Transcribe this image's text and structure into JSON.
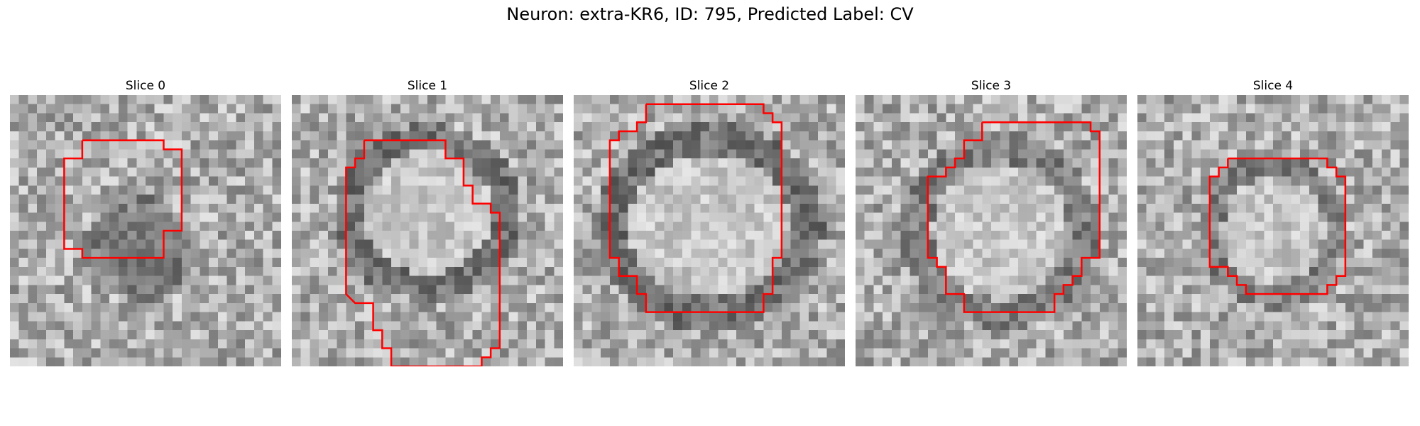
{
  "figure": {
    "title": "Neuron: extra-KR6, ID: 795, Predicted Label: CV",
    "grid_size": 30,
    "contour_color": "#ff0000",
    "colormap": "gray"
  },
  "panels": [
    {
      "title": "Slice 0",
      "dark_ring": {
        "cx": 14.5,
        "cy": 17.0,
        "rx": 4.5,
        "ry": 4.0,
        "level": 0.35,
        "filled": true
      },
      "contour": [
        [
          8,
          5
        ],
        [
          17,
          5
        ],
        [
          17,
          6
        ],
        [
          19,
          6
        ],
        [
          19,
          15
        ],
        [
          17,
          15
        ],
        [
          17,
          18
        ],
        [
          8,
          18
        ],
        [
          8,
          17
        ],
        [
          6,
          17
        ],
        [
          6,
          7
        ],
        [
          8,
          7
        ],
        [
          8,
          5
        ]
      ]
    },
    {
      "title": "Slice 1",
      "dark_ring": {
        "cx": 15.0,
        "cy": 13.0,
        "rx": 9.0,
        "ry": 8.5,
        "level": 0.3,
        "filled": false
      },
      "contour": [
        [
          8,
          5
        ],
        [
          17,
          5
        ],
        [
          17,
          7
        ],
        [
          19,
          7
        ],
        [
          19,
          10
        ],
        [
          20,
          10
        ],
        [
          20,
          12
        ],
        [
          22,
          12
        ],
        [
          22,
          13
        ],
        [
          23,
          13
        ],
        [
          23,
          28
        ],
        [
          22,
          28
        ],
        [
          22,
          29
        ],
        [
          21,
          29
        ],
        [
          21,
          30
        ],
        [
          11,
          30
        ],
        [
          11,
          28
        ],
        [
          10,
          28
        ],
        [
          10,
          26
        ],
        [
          9,
          26
        ],
        [
          9,
          23
        ],
        [
          7,
          23
        ],
        [
          7,
          23
        ],
        [
          6,
          22
        ],
        [
          6,
          8
        ],
        [
          7,
          8
        ],
        [
          7,
          7
        ],
        [
          8,
          7
        ],
        [
          8,
          5
        ]
      ]
    },
    {
      "title": "Slice 2",
      "dark_ring": {
        "cx": 15.0,
        "cy": 14.5,
        "rx": 11.0,
        "ry": 10.0,
        "level": 0.3,
        "filled": false
      },
      "contour": [
        [
          8,
          1
        ],
        [
          21,
          1
        ],
        [
          21,
          2
        ],
        [
          22,
          2
        ],
        [
          22,
          3
        ],
        [
          23,
          3
        ],
        [
          23,
          18
        ],
        [
          22,
          18
        ],
        [
          22,
          22
        ],
        [
          21,
          22
        ],
        [
          21,
          24
        ],
        [
          8,
          24
        ],
        [
          8,
          22
        ],
        [
          7,
          22
        ],
        [
          7,
          20
        ],
        [
          5,
          20
        ],
        [
          5,
          18
        ],
        [
          4,
          18
        ],
        [
          4,
          5
        ],
        [
          5,
          5
        ],
        [
          5,
          4
        ],
        [
          7,
          4
        ],
        [
          7,
          3
        ],
        [
          8,
          3
        ],
        [
          8,
          1
        ]
      ]
    },
    {
      "title": "Slice 3",
      "dark_ring": {
        "cx": 16.0,
        "cy": 15.0,
        "rx": 9.5,
        "ry": 9.5,
        "level": 0.35,
        "filled": false
      },
      "contour": [
        [
          14,
          3
        ],
        [
          26,
          3
        ],
        [
          26,
          4
        ],
        [
          27,
          4
        ],
        [
          27,
          18
        ],
        [
          25,
          18
        ],
        [
          25,
          20
        ],
        [
          24,
          20
        ],
        [
          24,
          21
        ],
        [
          23,
          21
        ],
        [
          23,
          22
        ],
        [
          22,
          22
        ],
        [
          22,
          24
        ],
        [
          12,
          24
        ],
        [
          12,
          22
        ],
        [
          10,
          22
        ],
        [
          10,
          19
        ],
        [
          9,
          19
        ],
        [
          9,
          18
        ],
        [
          8,
          18
        ],
        [
          8,
          9
        ],
        [
          10,
          9
        ],
        [
          10,
          8
        ],
        [
          11,
          8
        ],
        [
          11,
          7
        ],
        [
          12,
          7
        ],
        [
          12,
          5
        ],
        [
          14,
          5
        ],
        [
          14,
          3
        ]
      ]
    },
    {
      "title": "Slice 4",
      "dark_ring": {
        "cx": 15.0,
        "cy": 15.0,
        "rx": 7.0,
        "ry": 7.5,
        "level": 0.35,
        "filled": false
      },
      "contour": [
        [
          10,
          7
        ],
        [
          21,
          7
        ],
        [
          21,
          8
        ],
        [
          22,
          8
        ],
        [
          22,
          9
        ],
        [
          23,
          9
        ],
        [
          23,
          20
        ],
        [
          22,
          20
        ],
        [
          22,
          21
        ],
        [
          21,
          21
        ],
        [
          21,
          22
        ],
        [
          12,
          22
        ],
        [
          12,
          21
        ],
        [
          11,
          21
        ],
        [
          11,
          20
        ],
        [
          10,
          20
        ],
        [
          10,
          19
        ],
        [
          8,
          19
        ],
        [
          8,
          9
        ],
        [
          9,
          9
        ],
        [
          9,
          8
        ],
        [
          10,
          8
        ],
        [
          10,
          7
        ]
      ]
    }
  ]
}
